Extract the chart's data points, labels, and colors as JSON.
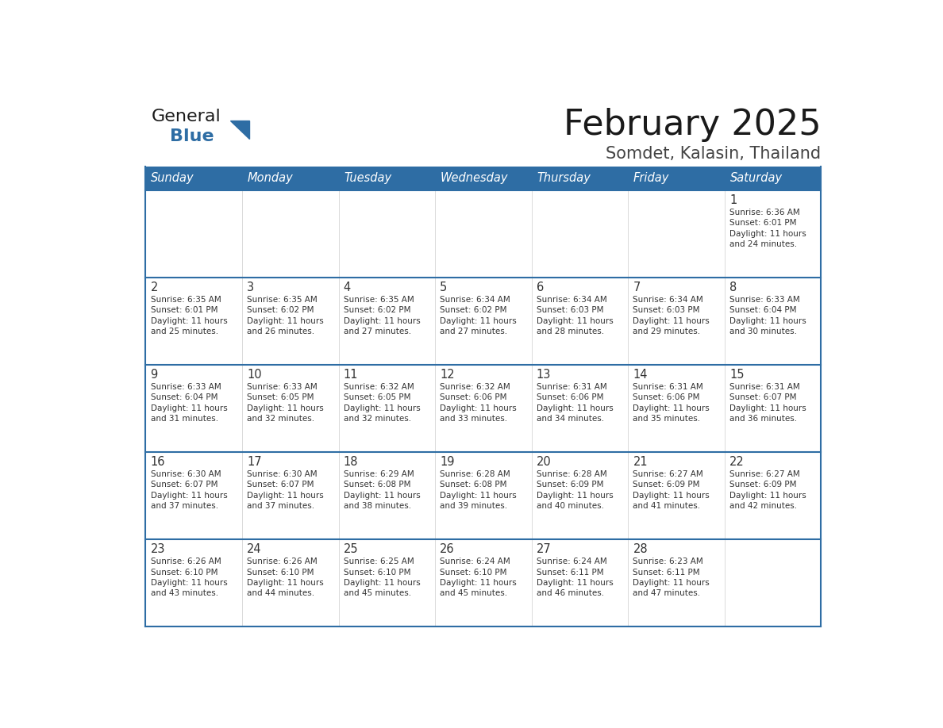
{
  "title": "February 2025",
  "subtitle": "Somdet, Kalasin, Thailand",
  "days_of_week": [
    "Sunday",
    "Monday",
    "Tuesday",
    "Wednesday",
    "Thursday",
    "Friday",
    "Saturday"
  ],
  "header_bg": "#2E6DA4",
  "header_text": "#FFFFFF",
  "cell_bg": "#FFFFFF",
  "row_border_color": "#2E6DA4",
  "text_color": "#333333",
  "title_color": "#1a1a1a",
  "subtitle_color": "#444444",
  "generalblue_dark": "#1a1a1a",
  "generalblue_blue": "#2E6DA4",
  "calendar_data": [
    [
      null,
      null,
      null,
      null,
      null,
      null,
      {
        "day": 1,
        "sunrise": "6:36 AM",
        "sunset": "6:01 PM",
        "daylight_h": "11 hours",
        "daylight_m": "and 24 minutes."
      }
    ],
    [
      {
        "day": 2,
        "sunrise": "6:35 AM",
        "sunset": "6:01 PM",
        "daylight_h": "11 hours",
        "daylight_m": "and 25 minutes."
      },
      {
        "day": 3,
        "sunrise": "6:35 AM",
        "sunset": "6:02 PM",
        "daylight_h": "11 hours",
        "daylight_m": "and 26 minutes."
      },
      {
        "day": 4,
        "sunrise": "6:35 AM",
        "sunset": "6:02 PM",
        "daylight_h": "11 hours",
        "daylight_m": "and 27 minutes."
      },
      {
        "day": 5,
        "sunrise": "6:34 AM",
        "sunset": "6:02 PM",
        "daylight_h": "11 hours",
        "daylight_m": "and 27 minutes."
      },
      {
        "day": 6,
        "sunrise": "6:34 AM",
        "sunset": "6:03 PM",
        "daylight_h": "11 hours",
        "daylight_m": "and 28 minutes."
      },
      {
        "day": 7,
        "sunrise": "6:34 AM",
        "sunset": "6:03 PM",
        "daylight_h": "11 hours",
        "daylight_m": "and 29 minutes."
      },
      {
        "day": 8,
        "sunrise": "6:33 AM",
        "sunset": "6:04 PM",
        "daylight_h": "11 hours",
        "daylight_m": "and 30 minutes."
      }
    ],
    [
      {
        "day": 9,
        "sunrise": "6:33 AM",
        "sunset": "6:04 PM",
        "daylight_h": "11 hours",
        "daylight_m": "and 31 minutes."
      },
      {
        "day": 10,
        "sunrise": "6:33 AM",
        "sunset": "6:05 PM",
        "daylight_h": "11 hours",
        "daylight_m": "and 32 minutes."
      },
      {
        "day": 11,
        "sunrise": "6:32 AM",
        "sunset": "6:05 PM",
        "daylight_h": "11 hours",
        "daylight_m": "and 32 minutes."
      },
      {
        "day": 12,
        "sunrise": "6:32 AM",
        "sunset": "6:06 PM",
        "daylight_h": "11 hours",
        "daylight_m": "and 33 minutes."
      },
      {
        "day": 13,
        "sunrise": "6:31 AM",
        "sunset": "6:06 PM",
        "daylight_h": "11 hours",
        "daylight_m": "and 34 minutes."
      },
      {
        "day": 14,
        "sunrise": "6:31 AM",
        "sunset": "6:06 PM",
        "daylight_h": "11 hours",
        "daylight_m": "and 35 minutes."
      },
      {
        "day": 15,
        "sunrise": "6:31 AM",
        "sunset": "6:07 PM",
        "daylight_h": "11 hours",
        "daylight_m": "and 36 minutes."
      }
    ],
    [
      {
        "day": 16,
        "sunrise": "6:30 AM",
        "sunset": "6:07 PM",
        "daylight_h": "11 hours",
        "daylight_m": "and 37 minutes."
      },
      {
        "day": 17,
        "sunrise": "6:30 AM",
        "sunset": "6:07 PM",
        "daylight_h": "11 hours",
        "daylight_m": "and 37 minutes."
      },
      {
        "day": 18,
        "sunrise": "6:29 AM",
        "sunset": "6:08 PM",
        "daylight_h": "11 hours",
        "daylight_m": "and 38 minutes."
      },
      {
        "day": 19,
        "sunrise": "6:28 AM",
        "sunset": "6:08 PM",
        "daylight_h": "11 hours",
        "daylight_m": "and 39 minutes."
      },
      {
        "day": 20,
        "sunrise": "6:28 AM",
        "sunset": "6:09 PM",
        "daylight_h": "11 hours",
        "daylight_m": "and 40 minutes."
      },
      {
        "day": 21,
        "sunrise": "6:27 AM",
        "sunset": "6:09 PM",
        "daylight_h": "11 hours",
        "daylight_m": "and 41 minutes."
      },
      {
        "day": 22,
        "sunrise": "6:27 AM",
        "sunset": "6:09 PM",
        "daylight_h": "11 hours",
        "daylight_m": "and 42 minutes."
      }
    ],
    [
      {
        "day": 23,
        "sunrise": "6:26 AM",
        "sunset": "6:10 PM",
        "daylight_h": "11 hours",
        "daylight_m": "and 43 minutes."
      },
      {
        "day": 24,
        "sunrise": "6:26 AM",
        "sunset": "6:10 PM",
        "daylight_h": "11 hours",
        "daylight_m": "and 44 minutes."
      },
      {
        "day": 25,
        "sunrise": "6:25 AM",
        "sunset": "6:10 PM",
        "daylight_h": "11 hours",
        "daylight_m": "and 45 minutes."
      },
      {
        "day": 26,
        "sunrise": "6:24 AM",
        "sunset": "6:10 PM",
        "daylight_h": "11 hours",
        "daylight_m": "and 45 minutes."
      },
      {
        "day": 27,
        "sunrise": "6:24 AM",
        "sunset": "6:11 PM",
        "daylight_h": "11 hours",
        "daylight_m": "and 46 minutes."
      },
      {
        "day": 28,
        "sunrise": "6:23 AM",
        "sunset": "6:11 PM",
        "daylight_h": "11 hours",
        "daylight_m": "and 47 minutes."
      },
      null
    ]
  ]
}
